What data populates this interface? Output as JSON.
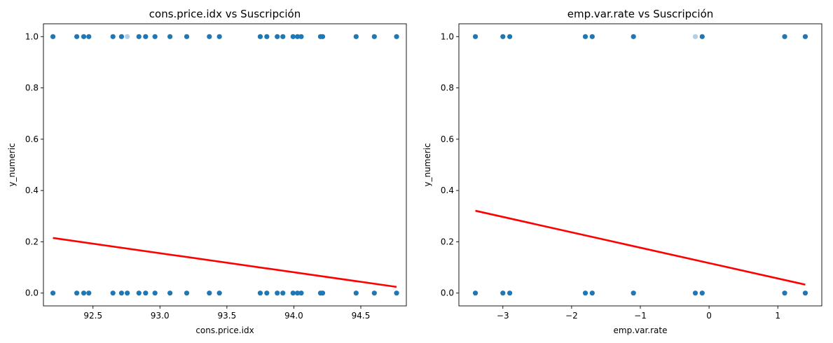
{
  "chart_data": [
    {
      "type": "scatter",
      "title": "cons.price.idx vs Suscripción",
      "xlabel": "cons.price.idx",
      "ylabel": "y_numeric",
      "xlim": [
        92.13,
        94.84
      ],
      "ylim": [
        -0.05,
        1.05
      ],
      "xticks": [
        92.5,
        93.0,
        93.5,
        94.0,
        94.5
      ],
      "xtick_labels": [
        "92.5",
        "93.0",
        "93.5",
        "94.0",
        "94.5"
      ],
      "yticks": [
        0.0,
        0.2,
        0.4,
        0.6,
        0.8,
        1.0
      ],
      "ytick_labels": [
        "0.0",
        "0.2",
        "0.4",
        "0.6",
        "0.8",
        "1.0"
      ],
      "grid": false,
      "point_color": "#1f77b4",
      "line_color": "#ff0000",
      "points": [
        {
          "x": 92.201,
          "y": 1,
          "alpha": 1
        },
        {
          "x": 92.379,
          "y": 1,
          "alpha": 1
        },
        {
          "x": 92.431,
          "y": 1,
          "alpha": 1
        },
        {
          "x": 92.469,
          "y": 1,
          "alpha": 1
        },
        {
          "x": 92.649,
          "y": 1,
          "alpha": 1
        },
        {
          "x": 92.713,
          "y": 1,
          "alpha": 1
        },
        {
          "x": 92.756,
          "y": 1,
          "alpha": 0.35
        },
        {
          "x": 92.843,
          "y": 1,
          "alpha": 1
        },
        {
          "x": 92.893,
          "y": 1,
          "alpha": 1
        },
        {
          "x": 92.963,
          "y": 1,
          "alpha": 1
        },
        {
          "x": 93.075,
          "y": 1,
          "alpha": 1
        },
        {
          "x": 93.2,
          "y": 1,
          "alpha": 1
        },
        {
          "x": 93.369,
          "y": 1,
          "alpha": 1
        },
        {
          "x": 93.444,
          "y": 1,
          "alpha": 1
        },
        {
          "x": 93.749,
          "y": 1,
          "alpha": 1
        },
        {
          "x": 93.798,
          "y": 1,
          "alpha": 1
        },
        {
          "x": 93.876,
          "y": 1,
          "alpha": 1
        },
        {
          "x": 93.918,
          "y": 1,
          "alpha": 1
        },
        {
          "x": 93.994,
          "y": 1,
          "alpha": 1
        },
        {
          "x": 94.027,
          "y": 1,
          "alpha": 1
        },
        {
          "x": 94.055,
          "y": 1,
          "alpha": 1
        },
        {
          "x": 94.199,
          "y": 1,
          "alpha": 1
        },
        {
          "x": 94.215,
          "y": 1,
          "alpha": 1
        },
        {
          "x": 94.465,
          "y": 1,
          "alpha": 1
        },
        {
          "x": 94.601,
          "y": 1,
          "alpha": 1
        },
        {
          "x": 94.767,
          "y": 1,
          "alpha": 1
        },
        {
          "x": 92.201,
          "y": 0,
          "alpha": 1
        },
        {
          "x": 92.379,
          "y": 0,
          "alpha": 1
        },
        {
          "x": 92.431,
          "y": 0,
          "alpha": 1
        },
        {
          "x": 92.469,
          "y": 0,
          "alpha": 1
        },
        {
          "x": 92.649,
          "y": 0,
          "alpha": 1
        },
        {
          "x": 92.713,
          "y": 0,
          "alpha": 1
        },
        {
          "x": 92.756,
          "y": 0,
          "alpha": 1
        },
        {
          "x": 92.843,
          "y": 0,
          "alpha": 1
        },
        {
          "x": 92.893,
          "y": 0,
          "alpha": 1
        },
        {
          "x": 92.963,
          "y": 0,
          "alpha": 1
        },
        {
          "x": 93.075,
          "y": 0,
          "alpha": 1
        },
        {
          "x": 93.2,
          "y": 0,
          "alpha": 1
        },
        {
          "x": 93.369,
          "y": 0,
          "alpha": 1
        },
        {
          "x": 93.444,
          "y": 0,
          "alpha": 1
        },
        {
          "x": 93.749,
          "y": 0,
          "alpha": 1
        },
        {
          "x": 93.798,
          "y": 0,
          "alpha": 1
        },
        {
          "x": 93.876,
          "y": 0,
          "alpha": 1
        },
        {
          "x": 93.918,
          "y": 0,
          "alpha": 1
        },
        {
          "x": 93.994,
          "y": 0,
          "alpha": 1
        },
        {
          "x": 94.027,
          "y": 0,
          "alpha": 1
        },
        {
          "x": 94.055,
          "y": 0,
          "alpha": 1
        },
        {
          "x": 94.199,
          "y": 0,
          "alpha": 1
        },
        {
          "x": 94.215,
          "y": 0,
          "alpha": 1
        },
        {
          "x": 94.465,
          "y": 0,
          "alpha": 1
        },
        {
          "x": 94.601,
          "y": 0,
          "alpha": 1
        },
        {
          "x": 94.767,
          "y": 0,
          "alpha": 1
        }
      ],
      "fit_line": {
        "x": [
          92.201,
          94.767
        ],
        "y": [
          0.215,
          0.024
        ]
      }
    },
    {
      "type": "scatter",
      "title": "emp.var.rate vs Suscripción",
      "xlabel": "emp.var.rate",
      "ylabel": "y_numeric",
      "xlim": [
        -3.64,
        1.64
      ],
      "ylim": [
        -0.05,
        1.05
      ],
      "xticks": [
        -3,
        -2,
        -1,
        0,
        1
      ],
      "xtick_labels": [
        "−3",
        "−2",
        "−1",
        "0",
        "1"
      ],
      "yticks": [
        0.0,
        0.2,
        0.4,
        0.6,
        0.8,
        1.0
      ],
      "ytick_labels": [
        "0.0",
        "0.2",
        "0.4",
        "0.6",
        "0.8",
        "1.0"
      ],
      "grid": false,
      "point_color": "#1f77b4",
      "line_color": "#ff0000",
      "points": [
        {
          "x": -3.4,
          "y": 1,
          "alpha": 1
        },
        {
          "x": -3.0,
          "y": 1,
          "alpha": 1
        },
        {
          "x": -2.9,
          "y": 1,
          "alpha": 1
        },
        {
          "x": -1.8,
          "y": 1,
          "alpha": 1
        },
        {
          "x": -1.7,
          "y": 1,
          "alpha": 1
        },
        {
          "x": -1.1,
          "y": 1,
          "alpha": 1
        },
        {
          "x": -0.2,
          "y": 1,
          "alpha": 0.35
        },
        {
          "x": -0.1,
          "y": 1,
          "alpha": 1
        },
        {
          "x": 1.1,
          "y": 1,
          "alpha": 1
        },
        {
          "x": 1.4,
          "y": 1,
          "alpha": 1
        },
        {
          "x": -3.4,
          "y": 0,
          "alpha": 1
        },
        {
          "x": -3.0,
          "y": 0,
          "alpha": 1
        },
        {
          "x": -2.9,
          "y": 0,
          "alpha": 1
        },
        {
          "x": -1.8,
          "y": 0,
          "alpha": 1
        },
        {
          "x": -1.7,
          "y": 0,
          "alpha": 1
        },
        {
          "x": -1.1,
          "y": 0,
          "alpha": 1
        },
        {
          "x": -0.2,
          "y": 0,
          "alpha": 1
        },
        {
          "x": -0.1,
          "y": 0,
          "alpha": 1
        },
        {
          "x": 1.1,
          "y": 0,
          "alpha": 1
        },
        {
          "x": 1.4,
          "y": 0,
          "alpha": 1
        }
      ],
      "fit_line": {
        "x": [
          -3.4,
          1.4
        ],
        "y": [
          0.321,
          0.033
        ]
      }
    }
  ]
}
